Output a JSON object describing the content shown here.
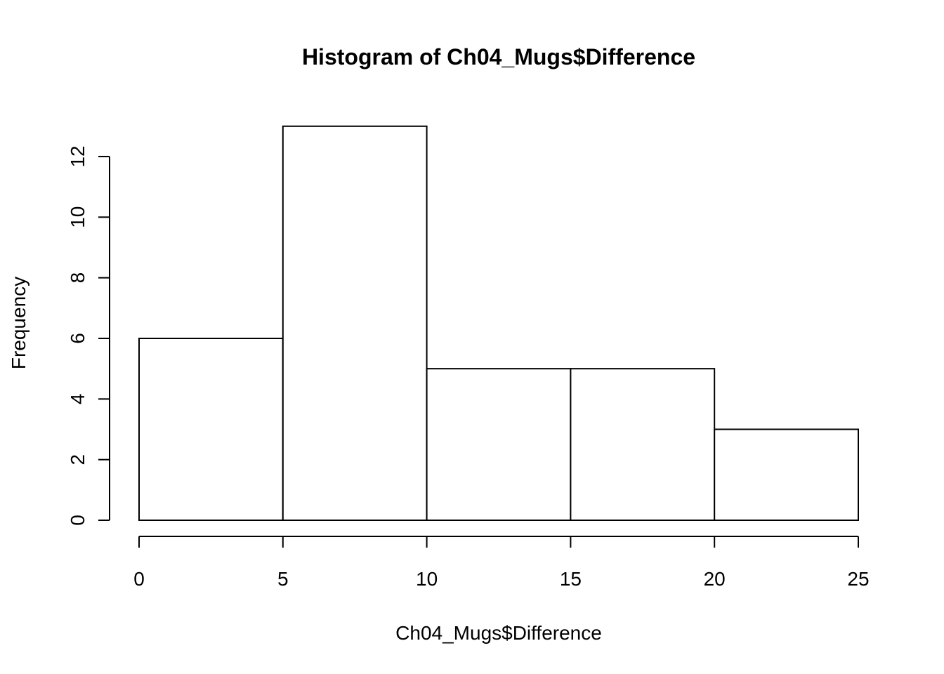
{
  "chart_data": {
    "type": "bar",
    "title": "Histogram of Ch04_Mugs$Difference",
    "xlabel": "Ch04_Mugs$Difference",
    "ylabel": "Frequency",
    "bins": [
      {
        "start": 0,
        "end": 5,
        "count": 6
      },
      {
        "start": 5,
        "end": 10,
        "count": 13
      },
      {
        "start": 10,
        "end": 15,
        "count": 5
      },
      {
        "start": 15,
        "end": 20,
        "count": 5
      },
      {
        "start": 20,
        "end": 25,
        "count": 3
      }
    ],
    "x_ticks": [
      0,
      5,
      10,
      15,
      20,
      25
    ],
    "y_ticks": [
      0,
      2,
      4,
      6,
      8,
      10,
      12
    ],
    "xlim": [
      0,
      25
    ],
    "ylim": [
      0,
      13
    ],
    "grid": false,
    "colors": {
      "bar_fill": "#ffffff",
      "bar_stroke": "#000000"
    }
  }
}
